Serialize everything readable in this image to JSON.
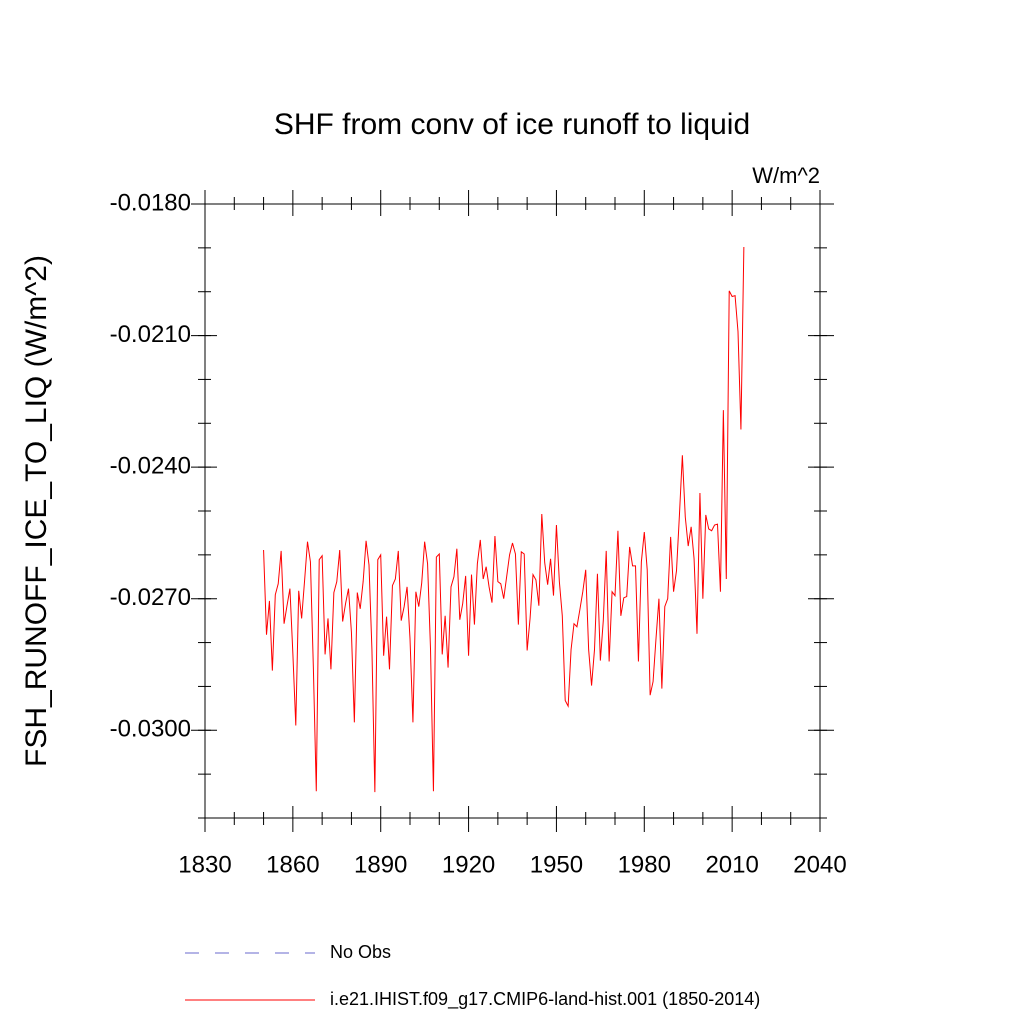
{
  "chart_data": {
    "type": "line",
    "title": "SHF from conv of ice runoff to liquid",
    "subtitle": "W/m^2",
    "y_label": "FSH_RUNOFF_ICE_TO_LIQ  (W/m^2)",
    "xlim": [
      1830,
      2040
    ],
    "xticks": [
      1830,
      1860,
      1890,
      1920,
      1950,
      1980,
      2010,
      2040
    ],
    "ylim": [
      -0.032,
      -0.018
    ],
    "yticks": [
      {
        "value": -0.018,
        "label": "-0.0180"
      },
      {
        "value": -0.021,
        "label": "-0.0210"
      },
      {
        "value": -0.024,
        "label": "-0.0240"
      },
      {
        "value": -0.027,
        "label": "-0.0270"
      },
      {
        "value": -0.03,
        "label": "-0.0300"
      }
    ],
    "x": [
      1850,
      1851,
      1852,
      1853,
      1854,
      1855,
      1856,
      1857,
      1858,
      1859,
      1860,
      1861,
      1862,
      1863,
      1864,
      1865,
      1866,
      1867,
      1868,
      1869,
      1870,
      1871,
      1872,
      1873,
      1874,
      1875,
      1876,
      1877,
      1878,
      1879,
      1880,
      1881,
      1882,
      1883,
      1884,
      1885,
      1886,
      1887,
      1888,
      1889,
      1890,
      1891,
      1892,
      1893,
      1894,
      1895,
      1896,
      1897,
      1898,
      1899,
      1900,
      1901,
      1902,
      1903,
      1904,
      1905,
      1906,
      1907,
      1908,
      1909,
      1910,
      1911,
      1912,
      1913,
      1914,
      1915,
      1916,
      1917,
      1918,
      1919,
      1920,
      1921,
      1922,
      1923,
      1924,
      1925,
      1926,
      1927,
      1928,
      1929,
      1930,
      1931,
      1932,
      1933,
      1934,
      1935,
      1936,
      1937,
      1938,
      1939,
      1940,
      1941,
      1942,
      1943,
      1944,
      1945,
      1946,
      1947,
      1948,
      1949,
      1950,
      1951,
      1952,
      1953,
      1954,
      1955,
      1956,
      1957,
      1958,
      1959,
      1960,
      1961,
      1962,
      1963,
      1964,
      1965,
      1966,
      1967,
      1968,
      1969,
      1970,
      1971,
      1972,
      1973,
      1974,
      1975,
      1976,
      1977,
      1978,
      1979,
      1980,
      1981,
      1982,
      1983,
      1984,
      1985,
      1986,
      1987,
      1988,
      1989,
      1990,
      1991,
      1992,
      1993,
      1994,
      1995,
      1996,
      1997,
      1998,
      1999,
      2000,
      2001,
      2002,
      2003,
      2004,
      2005,
      2006,
      2007,
      2008,
      2009,
      2010,
      2011,
      2012,
      2013,
      2014
    ],
    "series": [
      {
        "name": "No Obs",
        "color": "#6a6acd",
        "dash": "dashed",
        "values": null
      },
      {
        "name": "i.e21.IHIST.f09_g17.CMIP6-land-hist.001 (1850-2014)",
        "color": "#ff0000",
        "dash": "solid",
        "values": [
          -0.02589,
          -0.02782,
          -0.02705,
          -0.02864,
          -0.02691,
          -0.02666,
          -0.02591,
          -0.02757,
          -0.02716,
          -0.02677,
          -0.02825,
          -0.02989,
          -0.02682,
          -0.02745,
          -0.02659,
          -0.0257,
          -0.02616,
          -0.02857,
          -0.03139,
          -0.02611,
          -0.02602,
          -0.02827,
          -0.02745,
          -0.02861,
          -0.02686,
          -0.02661,
          -0.02589,
          -0.02752,
          -0.02711,
          -0.02677,
          -0.02777,
          -0.02982,
          -0.02686,
          -0.02723,
          -0.02661,
          -0.02568,
          -0.02623,
          -0.02816,
          -0.03141,
          -0.02611,
          -0.026,
          -0.0283,
          -0.02741,
          -0.02861,
          -0.0267,
          -0.02655,
          -0.02591,
          -0.0275,
          -0.02718,
          -0.02673,
          -0.02791,
          -0.02982,
          -0.02684,
          -0.02718,
          -0.02664,
          -0.0257,
          -0.0262,
          -0.02814,
          -0.03139,
          -0.02605,
          -0.02598,
          -0.02827,
          -0.02739,
          -0.02857,
          -0.02673,
          -0.0265,
          -0.02586,
          -0.02748,
          -0.02711,
          -0.02648,
          -0.0283,
          -0.02645,
          -0.02759,
          -0.0262,
          -0.02566,
          -0.02655,
          -0.02627,
          -0.02673,
          -0.02709,
          -0.02557,
          -0.02661,
          -0.02666,
          -0.027,
          -0.0265,
          -0.026,
          -0.02573,
          -0.02598,
          -0.02759,
          -0.02593,
          -0.02598,
          -0.02818,
          -0.02745,
          -0.02645,
          -0.02657,
          -0.02716,
          -0.02507,
          -0.02618,
          -0.02668,
          -0.02609,
          -0.02693,
          -0.02532,
          -0.02661,
          -0.02739,
          -0.02932,
          -0.02945,
          -0.02816,
          -0.02757,
          -0.02764,
          -0.02725,
          -0.02684,
          -0.02634,
          -0.02816,
          -0.02898,
          -0.02816,
          -0.02643,
          -0.02841,
          -0.0275,
          -0.02591,
          -0.02843,
          -0.02684,
          -0.02693,
          -0.02545,
          -0.02739,
          -0.02698,
          -0.02695,
          -0.02582,
          -0.02625,
          -0.02625,
          -0.02843,
          -0.02616,
          -0.02548,
          -0.02634,
          -0.0292,
          -0.02889,
          -0.02791,
          -0.027,
          -0.02905,
          -0.02718,
          -0.027,
          -0.02559,
          -0.02684,
          -0.02636,
          -0.02509,
          -0.02373,
          -0.02514,
          -0.0258,
          -0.02536,
          -0.02609,
          -0.0278,
          -0.02459,
          -0.027,
          -0.02509,
          -0.02541,
          -0.02545,
          -0.02532,
          -0.0253,
          -0.02684,
          -0.0227,
          -0.02655,
          -0.01998,
          -0.02011,
          -0.02009,
          -0.02091,
          -0.02314,
          -0.01898
        ]
      }
    ]
  }
}
